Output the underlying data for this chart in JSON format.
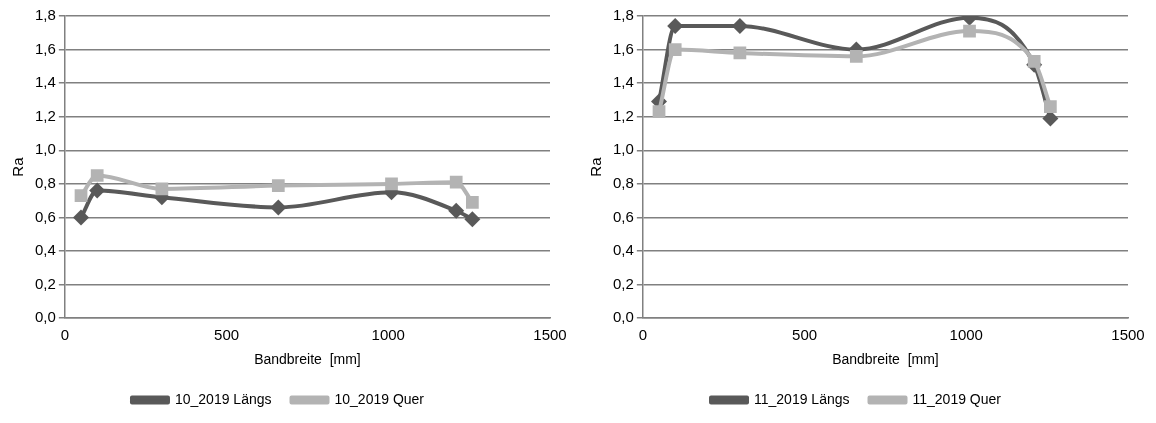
{
  "chart_data": [
    {
      "type": "line",
      "xlabel": "Bandbreite  [mm]",
      "ylabel": "Ra",
      "xlim": [
        0,
        1500
      ],
      "xticks": [
        0,
        500,
        1000,
        1500
      ],
      "ylim": [
        0,
        1.8
      ],
      "yticks": [
        {
          "value": 0,
          "label": "0,0"
        },
        {
          "value": 0.2,
          "label": "0,2"
        },
        {
          "value": 0.4,
          "label": "0,4"
        },
        {
          "value": 0.6,
          "label": "0,6"
        },
        {
          "value": 0.8,
          "label": "0,8"
        },
        {
          "value": 1.0,
          "label": "1,0"
        },
        {
          "value": 1.2,
          "label": "1,2"
        },
        {
          "value": 1.4,
          "label": "1,4"
        },
        {
          "value": 1.6,
          "label": "1,6"
        },
        {
          "value": 1.8,
          "label": "1,8"
        }
      ],
      "grid": "y",
      "legend": "bottom",
      "x": [
        50,
        100,
        300,
        660,
        1010,
        1210,
        1260
      ],
      "series": [
        {
          "name": "10_2019 Längs",
          "color": "#595959",
          "marker": "diamond",
          "values": [
            0.6,
            0.76,
            0.72,
            0.66,
            0.75,
            0.64,
            0.59
          ]
        },
        {
          "name": "10_2019 Quer",
          "color": "#b3b3b3",
          "marker": "square",
          "values": [
            0.73,
            0.85,
            0.77,
            0.79,
            0.8,
            0.81,
            0.69
          ]
        }
      ]
    },
    {
      "type": "line",
      "xlabel": "Bandbreite  [mm]",
      "ylabel": "Ra",
      "xlim": [
        0,
        1500
      ],
      "xticks": [
        0,
        500,
        1000,
        1500
      ],
      "ylim": [
        0,
        1.8
      ],
      "yticks": [
        {
          "value": 0,
          "label": "0,0"
        },
        {
          "value": 0.2,
          "label": "0,2"
        },
        {
          "value": 0.4,
          "label": "0,4"
        },
        {
          "value": 0.6,
          "label": "0,6"
        },
        {
          "value": 0.8,
          "label": "0,8"
        },
        {
          "value": 1.0,
          "label": "1,0"
        },
        {
          "value": 1.2,
          "label": "1,2"
        },
        {
          "value": 1.4,
          "label": "1,4"
        },
        {
          "value": 1.6,
          "label": "1,6"
        },
        {
          "value": 1.8,
          "label": "1,8"
        }
      ],
      "grid": "y",
      "legend": "bottom",
      "x": [
        50,
        100,
        300,
        660,
        1010,
        1210,
        1260
      ],
      "series": [
        {
          "name": "11_2019 Längs",
          "color": "#595959",
          "marker": "diamond",
          "values": [
            1.29,
            1.74,
            1.74,
            1.6,
            1.79,
            1.51,
            1.19
          ]
        },
        {
          "name": "11_2019 Quer",
          "color": "#b3b3b3",
          "marker": "square",
          "values": [
            1.23,
            1.6,
            1.58,
            1.56,
            1.71,
            1.53,
            1.26
          ]
        }
      ]
    }
  ]
}
